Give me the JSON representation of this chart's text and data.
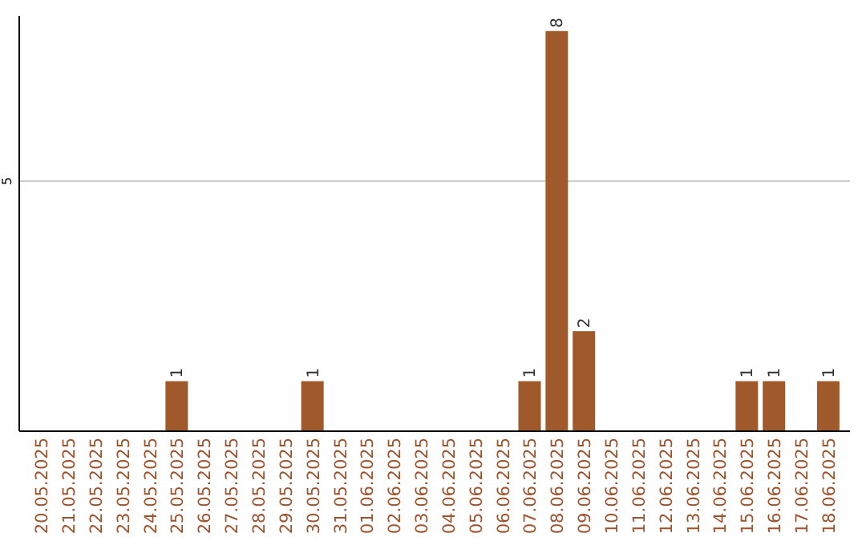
{
  "chart_data": {
    "type": "bar",
    "categories": [
      "20.05.2025",
      "21.05.2025",
      "22.05.2025",
      "23.05.2025",
      "24.05.2025",
      "25.05.2025",
      "26.05.2025",
      "27.05.2025",
      "28.05.2025",
      "29.05.2025",
      "30.05.2025",
      "31.05.2025",
      "01.06.2025",
      "02.06.2025",
      "03.06.2025",
      "04.06.2025",
      "05.06.2025",
      "06.06.2025",
      "07.06.2025",
      "08.06.2025",
      "09.06.2025",
      "10.06.2025",
      "11.06.2025",
      "12.06.2025",
      "13.06.2025",
      "14.06.2025",
      "15.06.2025",
      "16.06.2025",
      "17.06.2025",
      "18.06.2025"
    ],
    "values": [
      0,
      0,
      0,
      0,
      0,
      1,
      0,
      0,
      0,
      0,
      1,
      0,
      0,
      0,
      0,
      0,
      0,
      0,
      1,
      8,
      2,
      0,
      0,
      0,
      0,
      0,
      1,
      1,
      0,
      1
    ],
    "color": "#a0592a",
    "value_labels": [
      null,
      null,
      null,
      null,
      null,
      "1",
      null,
      null,
      null,
      null,
      "1",
      null,
      null,
      null,
      null,
      null,
      null,
      null,
      "1",
      "8",
      "2",
      null,
      null,
      null,
      null,
      null,
      "1",
      "1",
      null,
      "1"
    ],
    "ylim": [
      0,
      8.3
    ],
    "yticks": [
      5
    ],
    "grid": "y"
  }
}
